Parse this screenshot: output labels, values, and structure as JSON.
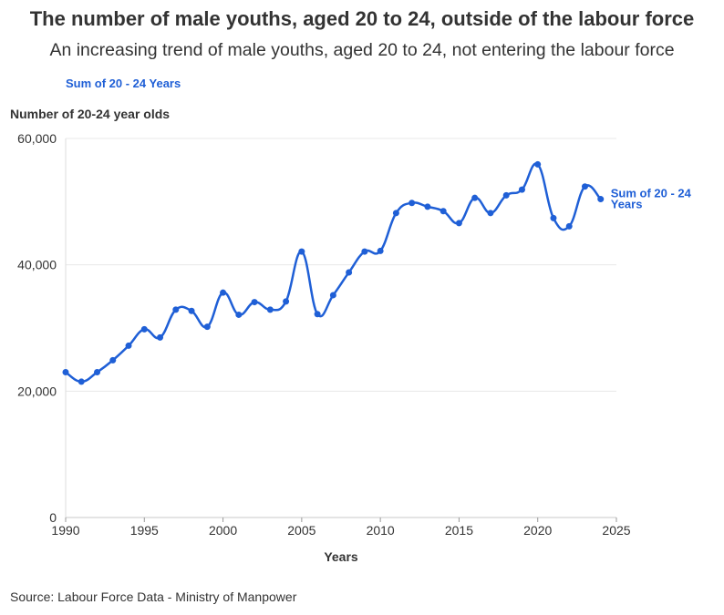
{
  "title": "The number of male youths, aged 20 to 24, outside of the labour force",
  "subtitle": "An increasing trend of male youths, aged 20 to 24, not entering the labour force",
  "source": "Source: Labour Force Data - Ministry of Manpower",
  "chart_data": {
    "type": "line",
    "ylabel": "Number of 20-24 year olds",
    "xlabel": "Years",
    "xlim": [
      1990,
      2025
    ],
    "ylim": [
      0,
      60000
    ],
    "x_ticks": [
      1990,
      1995,
      2000,
      2005,
      2010,
      2015,
      2020,
      2025
    ],
    "y_ticks": [
      0,
      20000,
      40000,
      60000
    ],
    "y_tick_labels": [
      "0",
      "20,000",
      "40,000",
      "60,000"
    ],
    "grid": "horizontal",
    "legend": "top-left",
    "color": "#1f5fd6",
    "series": [
      {
        "name": "Sum of 20 - 24 Years",
        "end_label": [
          "Sum of 20 - 24",
          "Years"
        ],
        "x": [
          1990,
          1991,
          1992,
          1993,
          1994,
          1995,
          1996,
          1997,
          1998,
          1999,
          2000,
          2001,
          2002,
          2003,
          2004,
          2005,
          2006,
          2007,
          2008,
          2009,
          2010,
          2011,
          2012,
          2013,
          2014,
          2015,
          2016,
          2017,
          2018,
          2019,
          2020,
          2021,
          2022,
          2023,
          2024
        ],
        "y": [
          23000,
          21500,
          23000,
          24900,
          27200,
          29800,
          28500,
          32900,
          32700,
          30200,
          35600,
          32100,
          34100,
          32900,
          34200,
          42100,
          32200,
          35200,
          38800,
          42100,
          42200,
          48200,
          49800,
          49200,
          48500,
          46600,
          50600,
          48200,
          51000,
          51900,
          55900,
          47400,
          46100,
          52400,
          50400
        ]
      }
    ]
  }
}
